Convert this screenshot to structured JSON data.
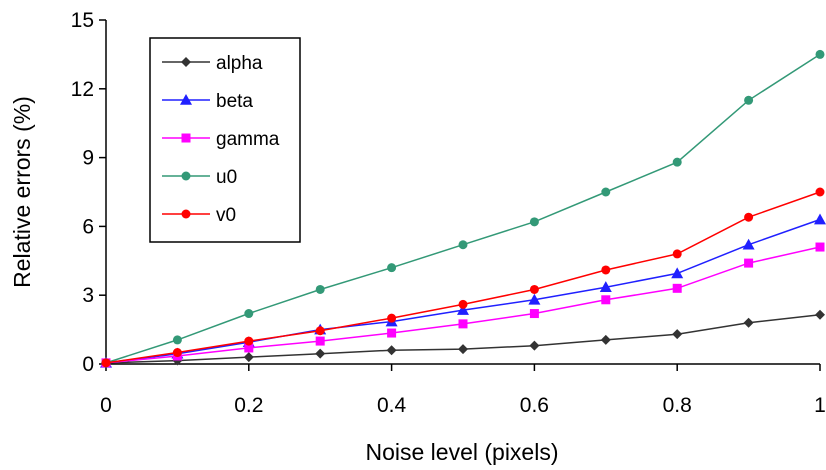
{
  "chart_data": {
    "type": "line",
    "title": "",
    "xlabel": "Noise level (pixels)",
    "ylabel": "Relative errors (%)",
    "xlim": [
      0,
      1
    ],
    "ylim": [
      0,
      15
    ],
    "xticks": [
      "0",
      "0.2",
      "0.4",
      "0.6",
      "0.8",
      "1"
    ],
    "yticks": [
      "0",
      "3",
      "6",
      "9",
      "12",
      "15"
    ],
    "grid": false,
    "legend_position": "top-left",
    "x": [
      0,
      0.1,
      0.2,
      0.3,
      0.4,
      0.5,
      0.6,
      0.7,
      0.8,
      0.9,
      1.0
    ],
    "series": [
      {
        "name": "alpha",
        "marker": "diamond",
        "color": "#333333",
        "values": [
          0.05,
          0.15,
          0.3,
          0.45,
          0.6,
          0.65,
          0.8,
          1.05,
          1.3,
          1.8,
          2.15
        ]
      },
      {
        "name": "beta",
        "marker": "triangle",
        "color": "#2020ff",
        "values": [
          0.05,
          0.45,
          0.95,
          1.5,
          1.85,
          2.35,
          2.8,
          3.35,
          3.95,
          5.2,
          6.3
        ]
      },
      {
        "name": "gamma",
        "marker": "square",
        "color": "#ff00ff",
        "values": [
          0.05,
          0.35,
          0.7,
          1.0,
          1.35,
          1.75,
          2.2,
          2.8,
          3.3,
          4.4,
          5.1
        ]
      },
      {
        "name": "u0",
        "marker": "circle",
        "color": "#339977",
        "values": [
          0.05,
          1.05,
          2.2,
          3.25,
          4.2,
          5.2,
          6.2,
          7.5,
          8.8,
          11.5,
          13.5
        ]
      },
      {
        "name": "v0",
        "marker": "circle",
        "color": "#ff0000",
        "values": [
          0.05,
          0.5,
          1.0,
          1.45,
          2.0,
          2.6,
          3.25,
          4.1,
          4.8,
          6.4,
          7.5
        ]
      }
    ]
  }
}
